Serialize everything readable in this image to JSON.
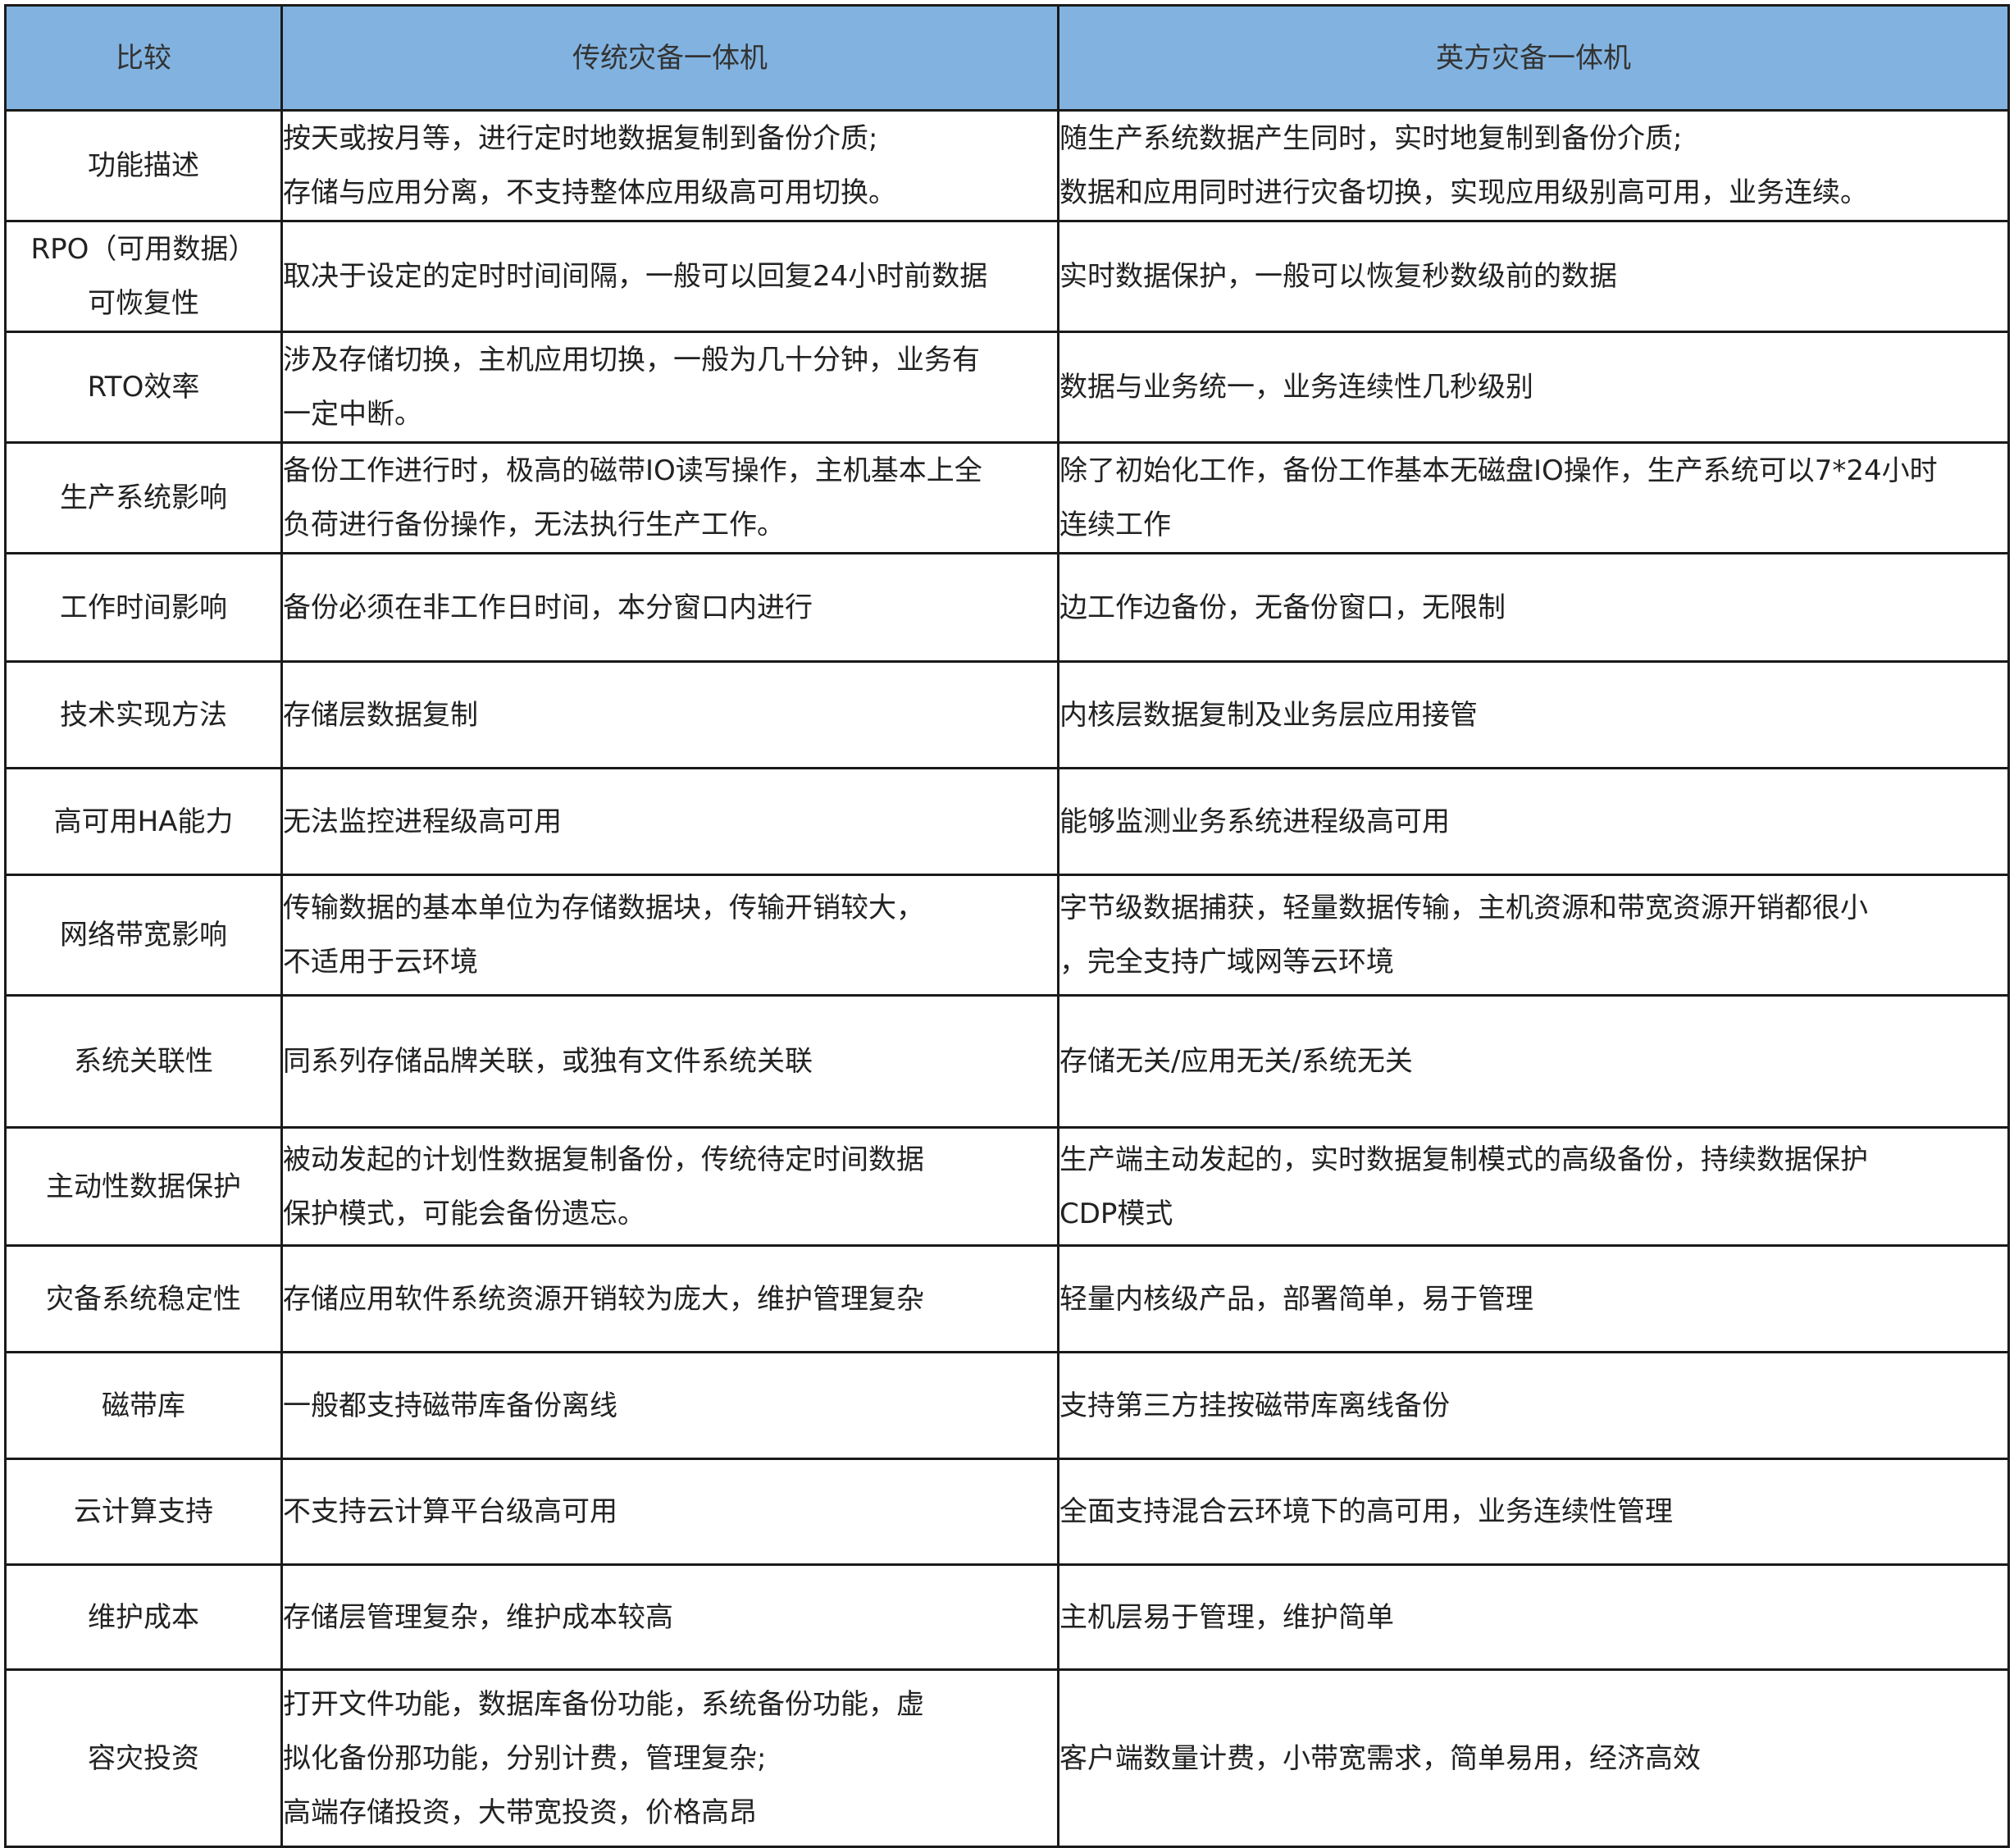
{
  "header": {
    "col1": "比较",
    "col2": "传统灾备一体机",
    "col3": "英方灾备一体机"
  },
  "rows": [
    {
      "label": [
        "功能描述"
      ],
      "traditional": [
        "按天或按月等，进行定时地数据复制到备份介质;",
        "存储与应用分离，不支持整体应用级高可用切换。"
      ],
      "yingfang": [
        "随生产系统数据产生同时，实时地复制到备份介质;",
        "数据和应用同时进行灾备切换，实现应用级别高可用，业务连续。"
      ]
    },
    {
      "label": [
        "RPO（可用数据）",
        "可恢复性"
      ],
      "traditional": [
        "取决于设定的定时时间间隔，一般可以回复24小时前数据"
      ],
      "yingfang": [
        "实时数据保护，一般可以恢复秒数级前的数据"
      ]
    },
    {
      "label": [
        "RTO效率"
      ],
      "traditional": [
        "涉及存储切换，主机应用切换，一般为几十分钟，业务有",
        "一定中断。"
      ],
      "yingfang": [
        "数据与业务统一，业务连续性几秒级别"
      ]
    },
    {
      "label": [
        "生产系统影响"
      ],
      "traditional": [
        "备份工作进行时，极高的磁带IO读写操作，主机基本上全",
        "负荷进行备份操作，无法执行生产工作。"
      ],
      "yingfang": [
        "除了初始化工作，备份工作基本无磁盘IO操作，生产系统可以7*24小时",
        "连续工作"
      ]
    },
    {
      "label": [
        "工作时间影响"
      ],
      "traditional": [
        "备份必须在非工作日时间，本分窗口内进行"
      ],
      "yingfang": [
        "边工作边备份，无备份窗口，无限制"
      ]
    },
    {
      "label": [
        "技术实现方法"
      ],
      "traditional": [
        "存储层数据复制"
      ],
      "yingfang": [
        "内核层数据复制及业务层应用接管"
      ]
    },
    {
      "label": [
        "高可用HA能力"
      ],
      "traditional": [
        "无法监控进程级高可用"
      ],
      "yingfang": [
        "能够监测业务系统进程级高可用"
      ]
    },
    {
      "label": [
        "网络带宽影响"
      ],
      "traditional": [
        "传输数据的基本单位为存储数据块，传输开销较大，",
        "不适用于云环境"
      ],
      "yingfang": [
        "字节级数据捕获，轻量数据传输，主机资源和带宽资源开销都很小",
        "，完全支持广域网等云环境"
      ]
    },
    {
      "label": [
        "系统关联性"
      ],
      "traditional": [
        "同系列存储品牌关联，或独有文件系统关联"
      ],
      "yingfang": [
        "存储无关/应用无关/系统无关"
      ]
    },
    {
      "label": [
        "主动性数据保护"
      ],
      "traditional": [
        "被动发起的计划性数据复制备份，传统待定时间数据",
        "保护模式，可能会备份遗忘。"
      ],
      "yingfang": [
        "生产端主动发起的，实时数据复制模式的高级备份，持续数据保护",
        "CDP模式"
      ]
    },
    {
      "label": [
        "灾备系统稳定性"
      ],
      "traditional": [
        "存储应用软件系统资源开销较为庞大，维护管理复杂"
      ],
      "yingfang": [
        "轻量内核级产品，部署简单，易于管理"
      ]
    },
    {
      "label": [
        "磁带库"
      ],
      "traditional": [
        "一般都支持磁带库备份离线"
      ],
      "yingfang": [
        "支持第三方挂按磁带库离线备份"
      ]
    },
    {
      "label": [
        "云计算支持"
      ],
      "traditional": [
        "不支持云计算平台级高可用"
      ],
      "yingfang": [
        "全面支持混合云环境下的高可用，业务连续性管理"
      ]
    },
    {
      "label": [
        "维护成本"
      ],
      "traditional": [
        "存储层管理复杂，维护成本较高"
      ],
      "yingfang": [
        "主机层易于管理，维护简单"
      ]
    },
    {
      "label": [
        "容灾投资"
      ],
      "traditional": [
        "打开文件功能，数据库备份功能，系统备份功能，虚",
        "拟化备份那功能，分别计费，管理复杂;",
        "高端存储投资，大带宽投资，价格高昂"
      ],
      "yingfang": [
        "客户端数量计费，小带宽需求，简单易用，经济高效"
      ]
    }
  ],
  "colors": {
    "header_bg": "#82b3e0",
    "border": "#1a1a1a"
  }
}
